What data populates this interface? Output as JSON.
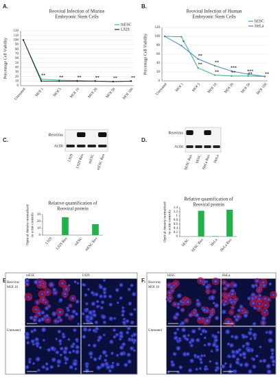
{
  "chart_data": [
    {
      "type": "line",
      "title": [
        "Reoviral Infection of Murine",
        "Embryonic Stem Cells"
      ],
      "y_label": "Percentage Cell Viability",
      "categories": [
        "Untreated",
        "MOI 1",
        "MOI 5",
        "MOI 10",
        "MOI 20",
        "MOI 50",
        "MOI 100"
      ],
      "series": [
        {
          "name": "mESC",
          "color": "#2bb39a",
          "values": [
            100,
            14,
            12,
            11,
            10,
            9,
            10
          ]
        },
        {
          "name": "L929",
          "color": "#222222",
          "values": [
            100,
            10,
            10,
            10,
            10,
            9,
            10
          ]
        }
      ],
      "ylim": [
        0,
        120
      ],
      "yticks": [
        0,
        10,
        20,
        30,
        40,
        50,
        60,
        70,
        80,
        90,
        100,
        110,
        120
      ],
      "grid": true,
      "legend": "top-right",
      "annotations": [
        {
          "text": "**",
          "x": "MOI 1",
          "y": 22
        },
        {
          "text": "**",
          "x": "MOI 5",
          "y": 18
        },
        {
          "text": "**",
          "x": "MOI 10",
          "y": 18
        },
        {
          "text": "**",
          "x": "MOI 20",
          "y": 17
        },
        {
          "text": "**",
          "x": "MOI 50",
          "y": 16
        },
        {
          "text": "**",
          "x": "MOI 100",
          "y": 17
        }
      ]
    },
    {
      "type": "line",
      "title": [
        "Reoviral Infection of Human",
        "Embryonic Stem Cells"
      ],
      "y_label": "Percentage Cell Viability",
      "categories": [
        "Untreated",
        "MOI 1",
        "MOI 5",
        "MOI 10",
        "MOI 20",
        "MOI 50",
        "MOI 100"
      ],
      "series": [
        {
          "name": "hESC",
          "color": "#2bb07c",
          "values": [
            100,
            99,
            29,
            13,
            11,
            11,
            10
          ]
        },
        {
          "name": "HeLa",
          "color": "#4a7ec0",
          "values": [
            100,
            79,
            49,
            34,
            22,
            15,
            10
          ]
        }
      ],
      "ylim": [
        0,
        120
      ],
      "yticks": [
        0,
        20,
        40,
        60,
        80,
        100,
        120
      ],
      "grid": true,
      "legend": "top-right",
      "annotations": [
        {
          "text": "*",
          "x": "MOI 1",
          "y": 87
        },
        {
          "text": "**",
          "x": "MOI 5",
          "y": 56
        },
        {
          "text": "**",
          "x": "MOI 5",
          "y": 37
        },
        {
          "text": "**",
          "x": "MOI 10",
          "y": 41
        },
        {
          "text": "**",
          "x": "MOI 10",
          "y": 20
        },
        {
          "text": "***",
          "x": "MOI 20",
          "y": 29
        },
        {
          "text": "**",
          "x": "MOI 20",
          "y": 18
        },
        {
          "text": "***",
          "x": "MOI 50",
          "y": 21
        },
        {
          "text": "**",
          "x": "MOI 50",
          "y": 15
        },
        {
          "text": "**",
          "x": "MOI 100",
          "y": 15
        }
      ]
    },
    {
      "type": "bar",
      "title": [
        "Relative quantification of",
        "Reoviral protein"
      ],
      "y_label": [
        "Optical density normalised",
        "to actin controls"
      ],
      "categories": [
        "L929",
        "L929 Reo",
        "mESC",
        "mESC Reo"
      ],
      "values": [
        0,
        26,
        0,
        16
      ],
      "color": "#22b24c",
      "ylim": [
        0,
        30
      ],
      "yticks": [
        0,
        10,
        20,
        30
      ],
      "grid": false
    },
    {
      "type": "bar",
      "title": [
        "Relative quantification of",
        "Reoviral protein"
      ],
      "y_label": [
        "Optical density normalised",
        "to actin controls"
      ],
      "categories": [
        "hESC",
        "hESC Reo",
        "HeLa",
        "HeLa Reo"
      ],
      "values": [
        0,
        1.25,
        0.02,
        1.3
      ],
      "color": "#22b24c",
      "ylim": [
        0,
        1.4
      ],
      "yticks": [
        0,
        0.2,
        0.4,
        0.6,
        0.8,
        1,
        1.2,
        1.4
      ],
      "grid": false
    }
  ],
  "panels": {
    "letters": [
      "A.",
      "B.",
      "C.",
      "D.",
      "E.",
      "F."
    ],
    "blot_c": {
      "bands": [
        "Reovirus",
        "Actin"
      ],
      "lanes": [
        "L929",
        "L929 Reo",
        "mESC",
        "mESC Reo"
      ]
    },
    "blot_d": {
      "bands": [
        "Reovirus",
        "Actin"
      ],
      "lanes": [
        "hESC Reo",
        "hESC",
        "HeLa Reo",
        "HeLa"
      ]
    },
    "micro_e": {
      "columns": [
        "mESC",
        "L929"
      ],
      "rows": [
        [
          "Reovirus",
          "MOI 10"
        ],
        [
          "Untreated"
        ]
      ]
    },
    "micro_f": {
      "columns": [
        "hESC",
        "HeLa"
      ],
      "rows": [
        [
          "Reovirus",
          "MOI 10"
        ],
        [
          "Untreated"
        ]
      ]
    }
  }
}
